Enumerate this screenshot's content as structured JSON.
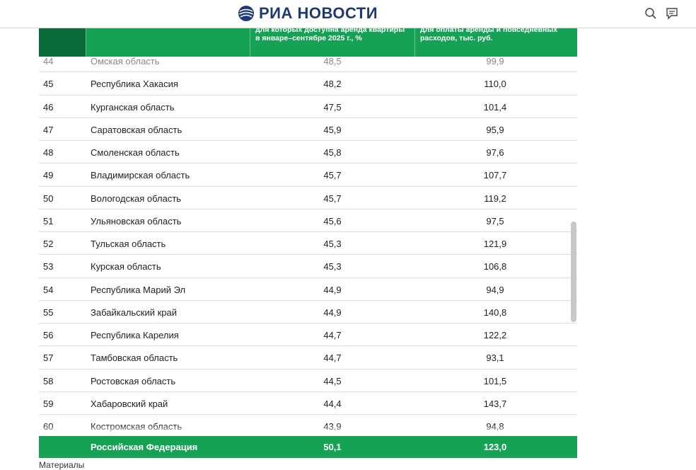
{
  "header": {
    "logo_text": "РИА НОВОСТИ",
    "brand_color": "#1f3a73"
  },
  "table": {
    "header_col3": "для которых доступна аренда квартиры в январе–сентябре 2025 г., %",
    "header_col4": "для оплаты аренды и повседневных расходов, тыс. руб.",
    "header_color": "#16a255",
    "rows": [
      {
        "num": "44",
        "region": "Омская область",
        "v1": "48,5",
        "v2": "99,9"
      },
      {
        "num": "45",
        "region": "Республика Хакасия",
        "v1": "48,2",
        "v2": "110,0"
      },
      {
        "num": "46",
        "region": "Курганская область",
        "v1": "47,5",
        "v2": "101,4"
      },
      {
        "num": "47",
        "region": "Саратовская область",
        "v1": "45,9",
        "v2": "95,9"
      },
      {
        "num": "48",
        "region": "Смоленская область",
        "v1": "45,8",
        "v2": "97,6"
      },
      {
        "num": "49",
        "region": "Владимирская область",
        "v1": "45,7",
        "v2": "107,7"
      },
      {
        "num": "50",
        "region": "Вологодская область",
        "v1": "45,7",
        "v2": "119,2"
      },
      {
        "num": "51",
        "region": "Ульяновская область",
        "v1": "45,6",
        "v2": "97,5"
      },
      {
        "num": "52",
        "region": "Тульская область",
        "v1": "45,3",
        "v2": "121,9"
      },
      {
        "num": "53",
        "region": "Курская область",
        "v1": "45,3",
        "v2": "106,8"
      },
      {
        "num": "54",
        "region": "Республика Марий Эл",
        "v1": "44,9",
        "v2": "94,9"
      },
      {
        "num": "55",
        "region": "Забайкальский край",
        "v1": "44,9",
        "v2": "140,8"
      },
      {
        "num": "56",
        "region": "Республика Карелия",
        "v1": "44,7",
        "v2": "122,2"
      },
      {
        "num": "57",
        "region": "Тамбовская область",
        "v1": "44,7",
        "v2": "93,1"
      },
      {
        "num": "58",
        "region": "Ростовская область",
        "v1": "44,5",
        "v2": "101,5"
      },
      {
        "num": "59",
        "region": "Хабаровский край",
        "v1": "44,4",
        "v2": "143,7"
      },
      {
        "num": "60",
        "region": "Костромская область",
        "v1": "43,9",
        "v2": "94,8"
      }
    ],
    "total": {
      "region": "Российская Федерация",
      "v1": "50,1",
      "v2": "123,0"
    }
  },
  "below_text": "Материалы"
}
